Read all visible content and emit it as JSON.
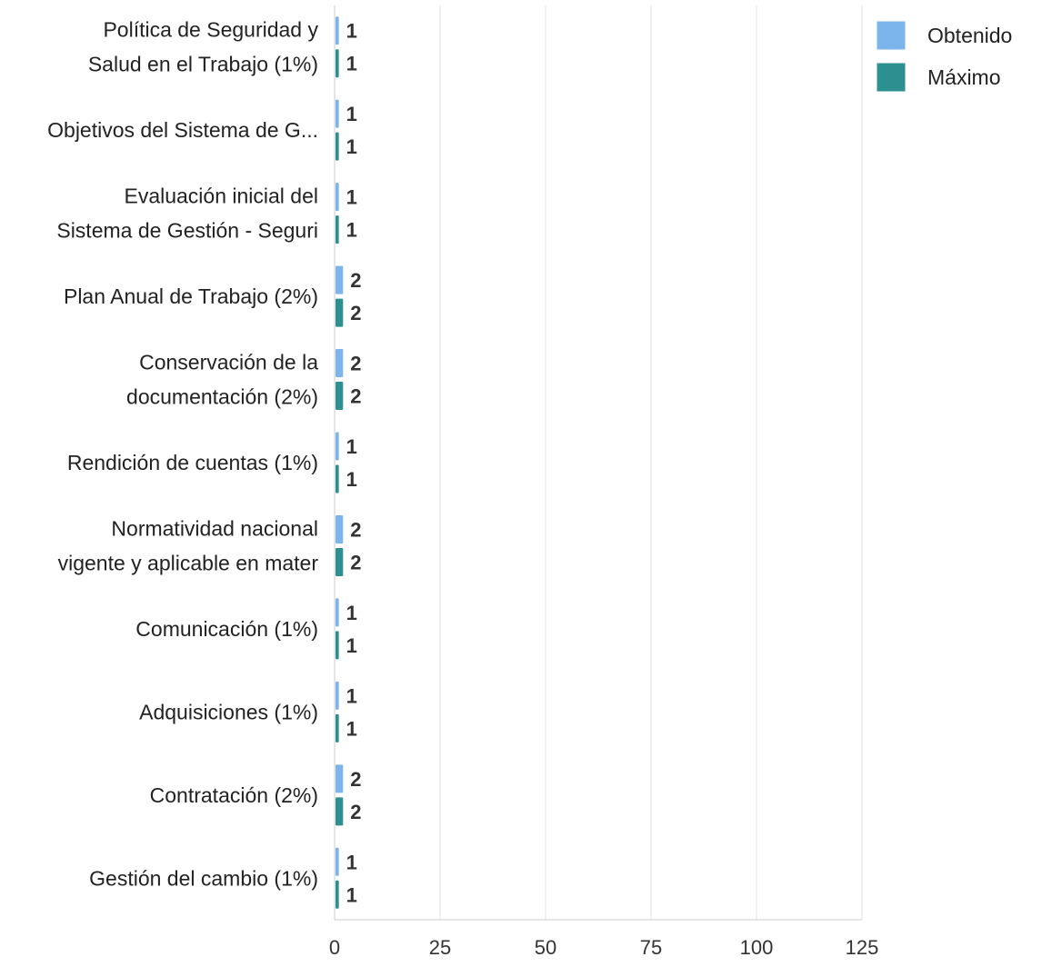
{
  "chart_data": {
    "type": "bar",
    "orientation": "horizontal",
    "categories": [
      [
        "Política de Seguridad y",
        "Salud en el Trabajo (1%)"
      ],
      [
        "Objetivos del Sistema de G..."
      ],
      [
        "Evaluación inicial del",
        "Sistema de Gestión - Seguri"
      ],
      [
        "Plan Anual de Trabajo (2%)"
      ],
      [
        "Conservación de la",
        "documentación (2%)"
      ],
      [
        "Rendición de cuentas (1%)"
      ],
      [
        "Normatividad nacional",
        "vigente y aplicable en mater"
      ],
      [
        "Comunicación (1%)"
      ],
      [
        "Adquisiciones (1%)"
      ],
      [
        "Contratación (2%)"
      ],
      [
        "Gestión del cambio (1%)"
      ]
    ],
    "series": [
      {
        "name": "Obtenido",
        "color": "#7cb5ec",
        "values": [
          1,
          1,
          1,
          2,
          2,
          1,
          2,
          1,
          1,
          2,
          1
        ]
      },
      {
        "name": "Máximo",
        "color": "#2b908f",
        "values": [
          1,
          1,
          1,
          2,
          2,
          1,
          2,
          1,
          1,
          2,
          1
        ]
      }
    ],
    "xlim": [
      0,
      125
    ],
    "xticks": [
      "0",
      "25",
      "50",
      "75",
      "100",
      "125"
    ],
    "grid": true,
    "data_labels": true,
    "legend_position": "top-right",
    "title": "",
    "xlabel": "",
    "ylabel": ""
  }
}
